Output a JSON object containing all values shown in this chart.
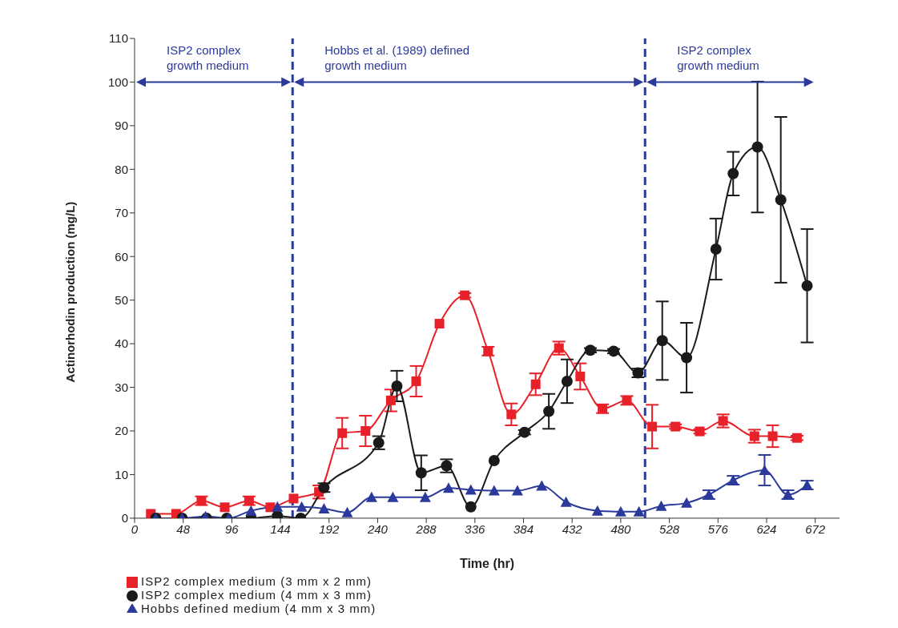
{
  "chart_data": {
    "type": "line",
    "xlabel": "Time (hr)",
    "ylabel": "Actinorhodin production (mg/L)",
    "xlim": [
      0,
      696
    ],
    "xticks": [
      0,
      48,
      96,
      144,
      192,
      240,
      288,
      336,
      384,
      432,
      480,
      528,
      576,
      624,
      672
    ],
    "ylim": [
      0,
      110
    ],
    "yticks": [
      0,
      10,
      20,
      30,
      40,
      50,
      60,
      70,
      80,
      90,
      100,
      110
    ],
    "grid": false,
    "legend": "bottom left",
    "line_style": "solid",
    "annotations": [
      "ISP2 complex\ngrowth medium",
      "Hobbs et al. (1989) defined\ngrowth medium",
      "ISP2 complex\ngrowth medium"
    ],
    "ref_lines": [
      {
        "axis": "x",
        "value": 156,
        "color": "#2b3a9a",
        "line_style": "dashed"
      },
      {
        "axis": "x",
        "value": 504,
        "color": "#2b3a9a",
        "line_style": "dashed"
      }
    ],
    "series": [
      {
        "name": "ISP2 complex medium (3 mm x 2 mm)",
        "color": "#e8202a",
        "marker": "square",
        "x": [
          16,
          41,
          66,
          89,
          113,
          134,
          157,
          182,
          205,
          228,
          253,
          278,
          301,
          326,
          349,
          372,
          396,
          419,
          440,
          462,
          486,
          511,
          534,
          558,
          581,
          612,
          630,
          654
        ],
        "values": [
          1,
          1,
          4,
          2.5,
          4,
          2.5,
          4.5,
          6,
          19.5,
          20,
          27,
          31.4,
          44.6,
          51.1,
          38.3,
          23.8,
          30.7,
          39,
          32.5,
          25.1,
          27,
          21,
          21,
          19.9,
          22.3,
          18.8,
          18.8,
          18.4
        ],
        "errors": [
          null,
          null,
          1,
          null,
          1,
          null,
          null,
          1.5,
          3.5,
          3.5,
          2.5,
          3.5,
          null,
          0.5,
          1,
          2.5,
          2.5,
          1.5,
          3,
          1,
          1,
          5,
          0.5,
          0.5,
          1.5,
          1.5,
          2.5,
          0.5
        ]
      },
      {
        "name": "ISP2 complex medium (4 mm x 3 mm)",
        "color": "#1a1a1a",
        "marker": "circle",
        "x": [
          21,
          47,
          71,
          91,
          115,
          141,
          164,
          187,
          241,
          259,
          283,
          308,
          332,
          355,
          385,
          409,
          427,
          450,
          473,
          497,
          521,
          545,
          574,
          591,
          615,
          638,
          664
        ],
        "values": [
          0,
          0,
          0,
          0,
          0,
          0.5,
          0,
          7,
          17.3,
          30.3,
          10.4,
          12,
          2.6,
          13.2,
          19.7,
          24.5,
          31.4,
          38.5,
          38.3,
          33.3,
          40.7,
          36.8,
          61.7,
          79,
          85.1,
          73,
          53.3
        ],
        "errors": [
          null,
          null,
          null,
          null,
          null,
          null,
          null,
          1,
          1.5,
          3.5,
          4,
          1.5,
          null,
          null,
          0.5,
          4,
          5,
          0.5,
          0.5,
          1,
          9,
          8,
          7,
          5,
          15,
          19,
          13
        ]
      },
      {
        "name": "Hobbs defined medium (4 mm x 3 mm)",
        "color": "#2b3a9a",
        "marker": "triangle",
        "x": [
          21,
          47,
          70,
          93,
          115,
          141,
          165,
          187,
          210,
          234,
          255,
          287,
          310,
          332,
          355,
          378,
          402,
          426,
          457,
          480,
          498,
          520,
          545,
          567,
          591,
          622,
          645,
          664
        ],
        "values": [
          0,
          0,
          0.4,
          0,
          1.7,
          2.6,
          2.6,
          2.2,
          1.3,
          4.8,
          4.8,
          4.8,
          6.9,
          6.5,
          6.3,
          6.3,
          7.4,
          3.7,
          1.7,
          1.5,
          1.5,
          2.8,
          3.5,
          5.4,
          8.7,
          11,
          5.4,
          7.6
        ],
        "errors": [
          null,
          null,
          null,
          null,
          null,
          null,
          null,
          null,
          null,
          null,
          null,
          null,
          null,
          null,
          null,
          null,
          null,
          null,
          null,
          null,
          null,
          null,
          null,
          1,
          1,
          3.5,
          1,
          1
        ]
      }
    ]
  }
}
